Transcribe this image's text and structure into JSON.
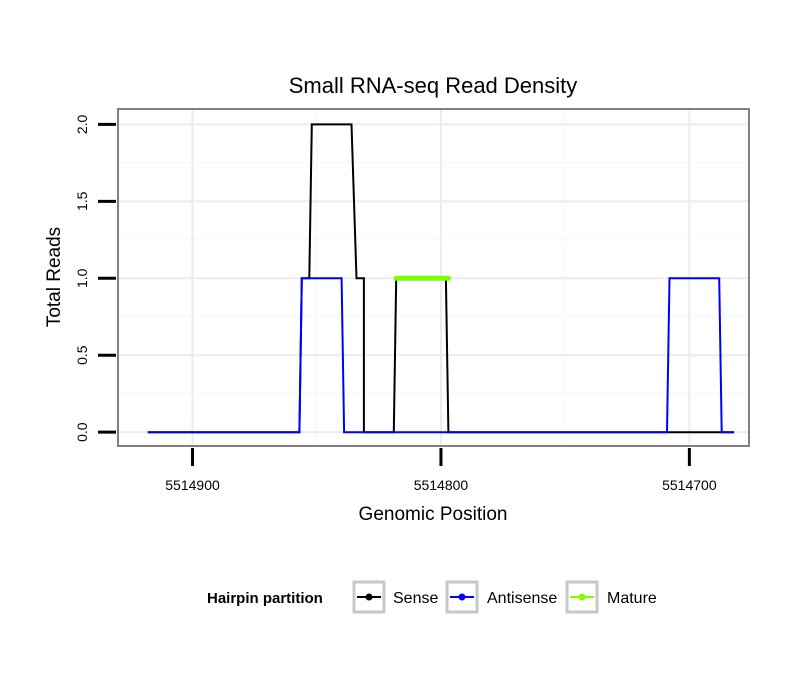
{
  "chart_data": {
    "type": "line",
    "title": "Small RNA-seq Read Density",
    "xlabel": "Genomic Position",
    "ylabel": "Total Reads",
    "x_reversed": true,
    "xlim": [
      5514930,
      5514676
    ],
    "ylim": [
      -0.09,
      2.1
    ],
    "x_ticks": [
      5514900,
      5514800,
      5514700
    ],
    "x_tick_labels": [
      "5514900",
      "5514800",
      "5514700"
    ],
    "y_ticks": [
      0,
      0.5,
      1,
      1.5,
      2
    ],
    "y_tick_labels": [
      "0.0",
      "0.5",
      "1.0",
      "1.5",
      "2.0"
    ],
    "grid": true,
    "legend_position": "bottom",
    "legend_title": "Hairpin partition",
    "series": [
      {
        "name": "Sense",
        "color": "#000000",
        "x": [
          5514918,
          5514857,
          5514856,
          5514853,
          5514852,
          5514836,
          5514834,
          5514831,
          5514831,
          5514819,
          5514818,
          5514798,
          5514797,
          5514782,
          5514682
        ],
        "y": [
          0,
          0,
          1,
          1,
          2,
          2,
          1,
          1,
          0,
          0,
          1,
          1,
          0,
          0,
          0
        ]
      },
      {
        "name": "Antisense",
        "color": "#0000ff",
        "x": [
          5514918,
          5514857,
          5514856,
          5514840,
          5514839,
          5514798,
          5514797,
          5514709,
          5514708,
          5514688,
          5514687,
          5514682
        ],
        "y": [
          0,
          0,
          1,
          1,
          0,
          0,
          0,
          0,
          1,
          1,
          0,
          0
        ]
      },
      {
        "name": "Mature",
        "color": "#7fff00",
        "x": [
          5514818,
          5514797
        ],
        "y": [
          1,
          1
        ]
      }
    ]
  }
}
